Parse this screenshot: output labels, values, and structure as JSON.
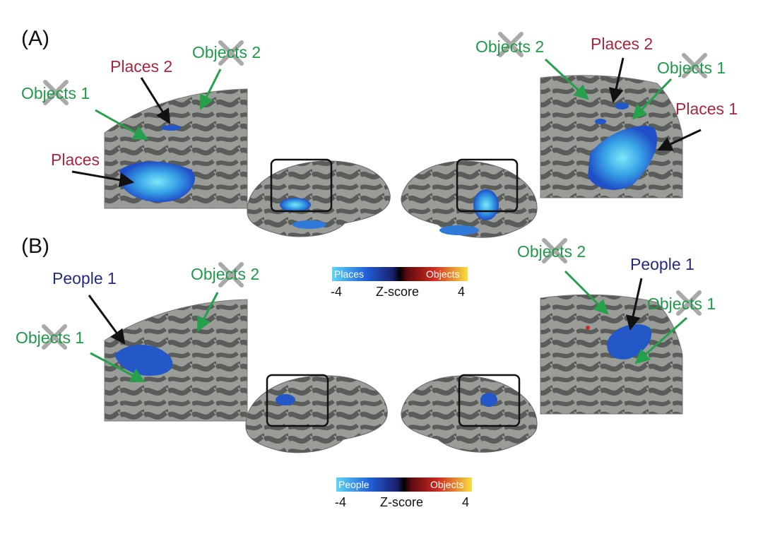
{
  "panels": {
    "a": "(A)",
    "b": "(B)"
  },
  "colors": {
    "places": "#a6263e",
    "objects": "#1f9a4a",
    "people": "#232c7a",
    "arrow_black": "#111111",
    "arrow_green": "#25a04b",
    "cortex_light": "#9a9c98",
    "cortex_dark": "#5a5c5a",
    "activation_blue": "#1f5fd0",
    "activation_cyan": "#5fd4f0"
  },
  "panel_a": {
    "left": {
      "objects1": "Objects 1",
      "places2": "Places 2",
      "objects2": "Objects 2",
      "places": "Places"
    },
    "right": {
      "objects2": "Objects 2",
      "places2": "Places 2",
      "objects1": "Objects 1",
      "places1": "Places 1"
    },
    "colorbar": {
      "left_label": "Places",
      "right_label": "Objects",
      "min": "-4",
      "title": "Z-score",
      "max": "4"
    }
  },
  "panel_b": {
    "left": {
      "people1": "People 1",
      "objects2": "Objects 2",
      "objects1": "Objects 1"
    },
    "right": {
      "objects2": "Objects 2",
      "people1": "People 1",
      "objects1": "Objects 1"
    },
    "colorbar": {
      "left_label": "People",
      "right_label": "Objects",
      "min": "-4",
      "title": "Z-score",
      "max": "4"
    }
  }
}
